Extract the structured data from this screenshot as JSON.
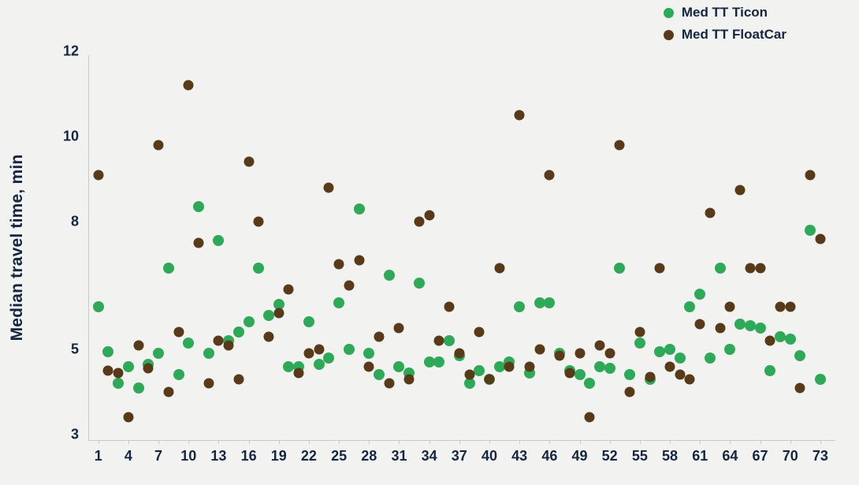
{
  "chart_data": {
    "type": "scatter",
    "title": "",
    "xlabel": "",
    "ylabel": "Median travel time, min",
    "xlim": [
      0,
      74.5
    ],
    "ylim": [
      3,
      12
    ],
    "x_tick_labels": [
      1,
      4,
      7,
      10,
      13,
      16,
      19,
      22,
      25,
      28,
      31,
      34,
      37,
      40,
      43,
      46,
      49,
      52,
      55,
      58,
      61,
      64,
      67,
      70,
      73
    ],
    "y_tick_labels": [
      12,
      10,
      8,
      5,
      3
    ],
    "grid": false,
    "legend_position": "top-right",
    "x": {
      "start": 1,
      "step": 1,
      "count": 73
    },
    "series": [
      {
        "name": "Med TT Ticon",
        "color": "#2ea957",
        "values": [
          6.0,
          4.95,
          4.2,
          4.6,
          4.1,
          4.65,
          4.9,
          6.9,
          4.4,
          5.15,
          8.35,
          4.9,
          7.55,
          5.2,
          5.4,
          5.65,
          6.9,
          5.8,
          6.05,
          4.6,
          4.6,
          5.65,
          4.65,
          4.8,
          6.1,
          5.0,
          8.3,
          4.9,
          4.4,
          6.75,
          4.6,
          4.45,
          6.55,
          4.7,
          4.7,
          5.2,
          4.85,
          4.2,
          4.5,
          4.3,
          4.6,
          4.7,
          6.0,
          4.45,
          6.1,
          6.1,
          4.9,
          4.5,
          4.4,
          4.2,
          4.6,
          4.55,
          6.9,
          4.4,
          5.15,
          4.3,
          4.95,
          5.0,
          4.8,
          6.0,
          6.3,
          4.8,
          6.9,
          5.0,
          5.6,
          5.55,
          5.5,
          4.5,
          5.3,
          5.25,
          4.85,
          7.8,
          4.3
        ]
      },
      {
        "name": "Med TT FloatCar",
        "color": "#593a18",
        "values": [
          9.1,
          4.5,
          4.45,
          3.4,
          5.1,
          4.55,
          9.8,
          4.0,
          5.4,
          11.2,
          7.5,
          4.2,
          5.2,
          5.1,
          4.3,
          9.4,
          8.0,
          5.3,
          5.85,
          6.4,
          4.45,
          4.9,
          5.0,
          8.8,
          7.0,
          6.5,
          7.1,
          4.6,
          5.3,
          4.2,
          5.5,
          4.3,
          8.0,
          8.15,
          5.2,
          6.0,
          4.9,
          4.4,
          5.4,
          4.3,
          6.9,
          4.6,
          10.5,
          4.6,
          5.0,
          9.1,
          4.85,
          4.45,
          4.9,
          3.4,
          5.1,
          4.9,
          9.8,
          4.0,
          5.4,
          4.35,
          6.9,
          4.6,
          4.4,
          4.3,
          5.6,
          8.2,
          5.5,
          6.0,
          8.75,
          6.9,
          6.9,
          5.2,
          6.0,
          6.0,
          4.1,
          9.1,
          7.6
        ]
      }
    ]
  },
  "colors": {
    "background": "#f2f2f1",
    "text": "#14263f",
    "axis_line": "#c9c9c9",
    "ticon": "#2ea957",
    "floatcar": "#593a18"
  }
}
